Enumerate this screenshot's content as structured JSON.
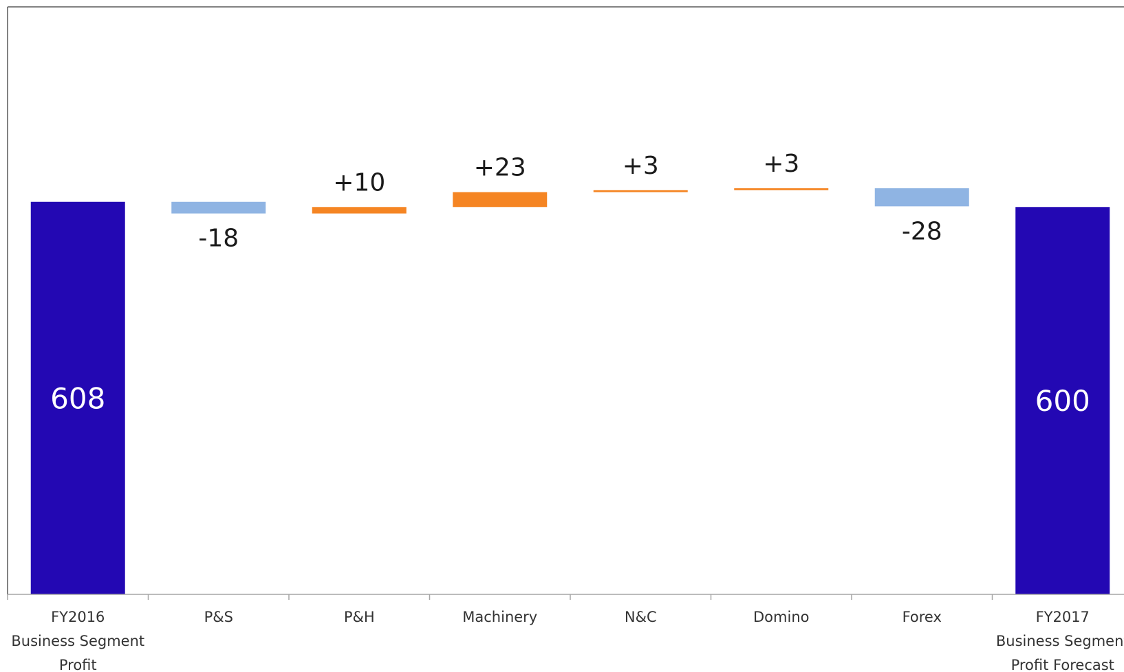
{
  "chart_data": {
    "type": "bar",
    "subtype": "waterfall",
    "categories": [
      [
        "FY2016",
        "Business Segment",
        "Profit"
      ],
      [
        "P&S"
      ],
      [
        "P&H"
      ],
      [
        "Machinery"
      ],
      [
        "N&C"
      ],
      [
        "Domino"
      ],
      [
        "Forex"
      ],
      [
        "FY2017",
        "Business Segment",
        "Profit Forecast"
      ]
    ],
    "bars": [
      {
        "kind": "total",
        "value": 608,
        "label": "608"
      },
      {
        "kind": "delta",
        "value": -18,
        "label": "-18"
      },
      {
        "kind": "delta",
        "value": 10,
        "label": "+10"
      },
      {
        "kind": "delta",
        "value": 23,
        "label": "+23"
      },
      {
        "kind": "delta",
        "value": 3,
        "label": "+3"
      },
      {
        "kind": "delta",
        "value": 3,
        "label": "+3"
      },
      {
        "kind": "delta",
        "value": -28,
        "label": "-28"
      },
      {
        "kind": "total",
        "value": 600,
        "label": "600"
      }
    ],
    "ylim": [
      0,
      910
    ],
    "title": "",
    "xlabel": "",
    "ylabel": "",
    "grid": false,
    "colors": {
      "total": "#2308b3",
      "increase": "#f58523",
      "decrease": "#8fb4e3",
      "axis": "#a6a6a6",
      "border": "#595959"
    }
  }
}
